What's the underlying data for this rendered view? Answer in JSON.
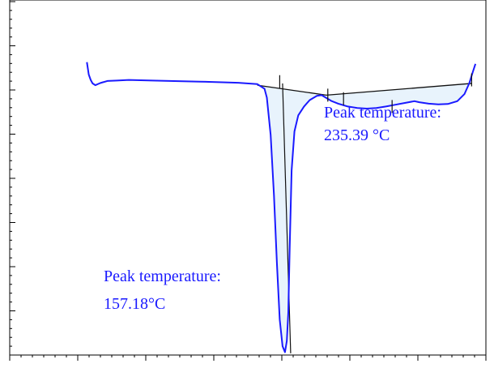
{
  "chart_data": {
    "type": "line",
    "title": "",
    "xlabel": "",
    "ylabel": "",
    "grid": false,
    "legend": "none",
    "xlim": [
      0,
      100
    ],
    "ylim": [
      0,
      100
    ],
    "series": [
      {
        "x": [
          16.2,
          16.6,
          17.0,
          17.4,
          18.0,
          19.0,
          20.5,
          22.5,
          25.0,
          30.0,
          40.0,
          48.0,
          52.0,
          53.5,
          54.0,
          54.8,
          55.5,
          56.1,
          56.7,
          57.3,
          57.8,
          58.2,
          58.5,
          58.8,
          59.2,
          59.8,
          60.6,
          61.8,
          63.0,
          64.5,
          65.5,
          66.5,
          67.5,
          69.0,
          71.0,
          73.0,
          75.0,
          77.0,
          79.0,
          81.0,
          83.0,
          85.0,
          86.0,
          88.0,
          90.0,
          92.0,
          94.0,
          95.5,
          96.5,
          97.2,
          97.8
        ],
        "y": [
          82.5,
          79.0,
          77.5,
          76.5,
          76.0,
          76.6,
          77.2,
          77.3,
          77.5,
          77.3,
          77.0,
          76.7,
          76.3,
          75.0,
          72.5,
          62.0,
          45.0,
          26.0,
          10.0,
          2.5,
          0.8,
          4.0,
          12.0,
          30.0,
          52.0,
          63.0,
          67.5,
          70.0,
          71.8,
          73.0,
          73.2,
          72.4,
          71.6,
          70.8,
          70.0,
          69.6,
          69.4,
          69.6,
          70.0,
          70.5,
          71.0,
          71.5,
          71.2,
          70.8,
          70.6,
          70.7,
          71.5,
          73.5,
          76.5,
          79.5,
          82.0
        ],
        "color": "#1a1aff"
      }
    ],
    "baselines": [
      {
        "x": [
          52.0,
          66.5
        ],
        "y": [
          76.0,
          73.2
        ]
      },
      {
        "x": [
          66.5,
          97.0
        ],
        "y": [
          73.2,
          76.5
        ]
      }
    ],
    "markers": [
      {
        "x": 56.7,
        "y": 77.0
      },
      {
        "x": 66.8,
        "y": 73.2
      },
      {
        "x": 70.1,
        "y": 72.2
      },
      {
        "x": 80.3,
        "y": 70.0
      },
      {
        "x": 97.0,
        "y": 77.5
      }
    ],
    "peak_lines": [
      {
        "x": [
          57.3,
          59.0
        ],
        "y": [
          76.5,
          0.5
        ]
      }
    ],
    "fill_color": "#e8f3fc",
    "annotations": [
      {
        "line1": "Peak temperature:",
        "line2": "157.18°C"
      },
      {
        "line1": "Peak temperature:",
        "line2": "235.39 °C"
      }
    ]
  }
}
